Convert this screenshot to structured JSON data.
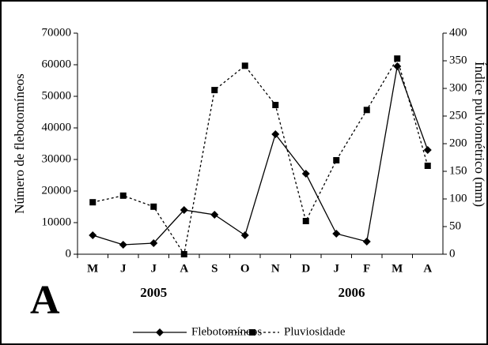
{
  "chart_data": {
    "type": "line",
    "categories": [
      "M",
      "J",
      "J",
      "A",
      "S",
      "O",
      "N",
      "D",
      "J",
      "F",
      "M",
      "A"
    ],
    "year_labels": [
      "2005",
      "2006"
    ],
    "panel_label": "A",
    "y_label": "Número de flebotomíneos",
    "y2_label": "Índice pulviométrico (mm)",
    "series": [
      {
        "name": "Flebotomíneos",
        "color": "#000000",
        "line_style": "solid",
        "marker": "diamond",
        "values": [
          6000,
          3000,
          3500,
          14000,
          12500,
          6000,
          38000,
          25500,
          6500,
          4000,
          59500,
          33000
        ]
      },
      {
        "name": "Pluviosidade",
        "color": "#000000",
        "line_style": "dotted",
        "marker": "square",
        "axis": "y2",
        "values": [
          94,
          106,
          86,
          0,
          297,
          341,
          270,
          60,
          170,
          261,
          354,
          160
        ]
      }
    ],
    "ylim": [
      0,
      70000
    ],
    "yticks": [
      0,
      10000,
      20000,
      30000,
      40000,
      50000,
      60000,
      70000
    ],
    "y2lim": [
      0,
      400
    ],
    "y2ticks": [
      0,
      50,
      100,
      150,
      200,
      250,
      300,
      350,
      400
    ],
    "legend": "bottom"
  }
}
